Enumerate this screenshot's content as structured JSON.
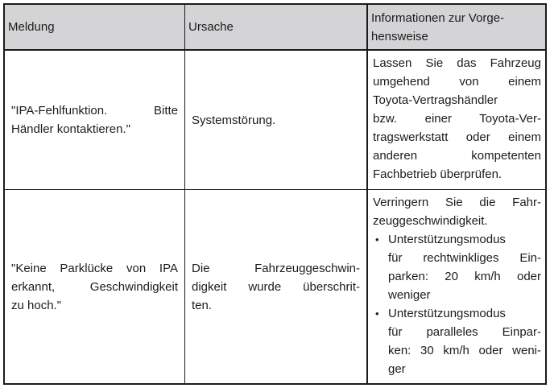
{
  "page": {
    "background": "#ffffff"
  },
  "table": {
    "border_color": "#1b1b1b",
    "header_bg": "#d4d4d6",
    "text_color": "#1c1c1c",
    "bullet_char": "•",
    "headers": {
      "meldung": "Meldung",
      "ursache": "Ursache",
      "info_lines": [
        "Informationen zur Vorge-",
        "hensweise"
      ]
    },
    "rows": [
      {
        "meldung_lines": [
          "\"IPA-Fehlfunktion. Bitte",
          "Händler kontaktieren.\""
        ],
        "ursache_lines": [
          "Systemstörung."
        ],
        "info_lines": [
          "Lassen Sie das Fahrzeug",
          "umgehend von einem",
          "Toyota-Vertragshändler",
          "bzw. einer Toyota-Ver-",
          "tragswerkstatt oder einem",
          "anderen kompetenten",
          "Fachbetrieb überprüfen."
        ]
      },
      {
        "meldung_lines": [
          "\"Keine Parklücke von IPA",
          "erkannt, Geschwindigkeit",
          "zu hoch.\""
        ],
        "ursache_lines": [
          "Die Fahrzeuggeschwin-",
          "digkeit wurde überschrit-",
          "ten."
        ],
        "info_intro_lines": [
          "Verringern Sie die Fahr-",
          "zeuggeschwindigkeit."
        ],
        "info_bullets": [
          {
            "lines": [
              "Unterstützungsmodus",
              "für rechtwinkliges Ein-",
              "parken: 20 km/h oder",
              "weniger"
            ]
          },
          {
            "lines": [
              "Unterstützungsmodus",
              "für paralleles Einpar-",
              "ken: 30 km/h oder weni-",
              "ger"
            ]
          }
        ]
      }
    ]
  }
}
